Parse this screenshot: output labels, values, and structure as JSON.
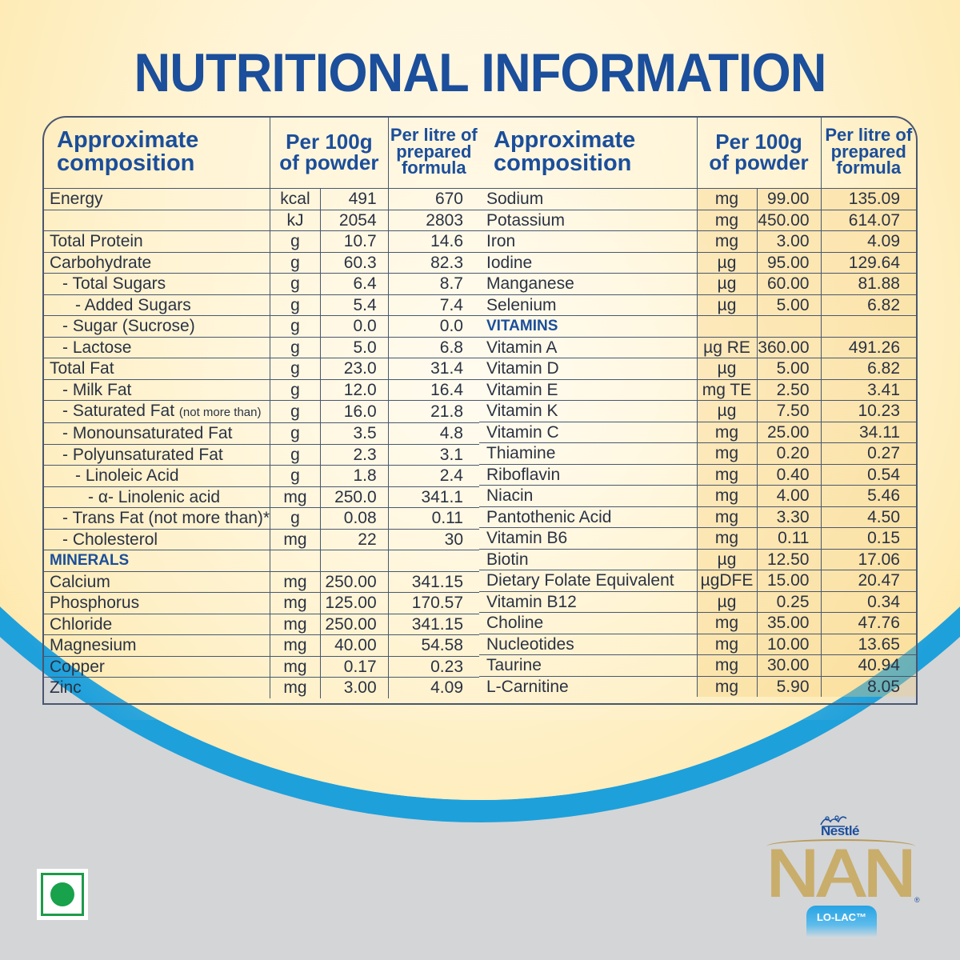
{
  "title": "NUTRITIONAL INFORMATION",
  "headers": {
    "composition_line1": "Approximate",
    "composition_line2": "composition",
    "per100_line1": "Per 100g",
    "per100_line2": "of powder",
    "perlitre_line1": "Per litre of",
    "perlitre_line2": "prepared",
    "perlitre_line3": "formula"
  },
  "left_rows": [
    {
      "name": "Energy",
      "unit": "kcal",
      "per100g": "491",
      "per_litre": "670"
    },
    {
      "name": "",
      "unit": "kJ",
      "per100g": "2054",
      "per_litre": "2803"
    },
    {
      "name": "Total Protein",
      "unit": "g",
      "per100g": "10.7",
      "per_litre": "14.6"
    },
    {
      "name": "Carbohydrate",
      "unit": "g",
      "per100g": "60.3",
      "per_litre": "82.3"
    },
    {
      "name": "- Total Sugars",
      "unit": "g",
      "per100g": "6.4",
      "per_litre": "8.7"
    },
    {
      "name": "- Added Sugars",
      "unit": "g",
      "per100g": "5.4",
      "per_litre": "7.4"
    },
    {
      "name": "- Sugar (Sucrose)",
      "unit": "g",
      "per100g": "0.0",
      "per_litre": "0.0"
    },
    {
      "name": "- Lactose",
      "unit": "g",
      "per100g": "5.0",
      "per_litre": "6.8"
    },
    {
      "name": "Total Fat",
      "unit": "g",
      "per100g": "23.0",
      "per_litre": "31.4"
    },
    {
      "name": "- Milk Fat",
      "unit": "g",
      "per100g": "12.0",
      "per_litre": "16.4"
    },
    {
      "name": "- Saturated Fat",
      "note": "(not more than)",
      "unit": "g",
      "per100g": "16.0",
      "per_litre": "21.8"
    },
    {
      "name": "- Monounsaturated Fat",
      "unit": "g",
      "per100g": "3.5",
      "per_litre": "4.8"
    },
    {
      "name": "- Polyunsaturated Fat",
      "unit": "g",
      "per100g": "2.3",
      "per_litre": "3.1"
    },
    {
      "name": "- Linoleic Acid",
      "unit": "g",
      "per100g": "1.8",
      "per_litre": "2.4"
    },
    {
      "name": "- α- Linolenic acid",
      "unit": "mg",
      "per100g": "250.0",
      "per_litre": "341.1"
    },
    {
      "name": "- Trans Fat (not more than)*",
      "unit": "g",
      "per100g": "0.08",
      "per_litre": "0.11"
    },
    {
      "name": "- Cholesterol",
      "unit": "mg",
      "per100g": "22",
      "per_litre": "30"
    },
    {
      "name": "MINERALS",
      "unit": "",
      "per100g": "",
      "per_litre": ""
    },
    {
      "name": "Calcium",
      "unit": "mg",
      "per100g": "250.00",
      "per_litre": "341.15"
    },
    {
      "name": "Phosphorus",
      "unit": "mg",
      "per100g": "125.00",
      "per_litre": "170.57"
    },
    {
      "name": "Chloride",
      "unit": "mg",
      "per100g": "250.00",
      "per_litre": "341.15"
    },
    {
      "name": "Magnesium",
      "unit": "mg",
      "per100g": "40.00",
      "per_litre": "54.58"
    },
    {
      "name": "Copper",
      "unit": "mg",
      "per100g": "0.17",
      "per_litre": "0.23"
    },
    {
      "name": "Zinc",
      "unit": "mg",
      "per100g": "3.00",
      "per_litre": "4.09"
    }
  ],
  "right_rows": [
    {
      "name": "Sodium",
      "unit": "mg",
      "per100g": "99.00",
      "per_litre": "135.09"
    },
    {
      "name": "Potassium",
      "unit": "mg",
      "per100g": "450.00",
      "per_litre": "614.07"
    },
    {
      "name": "Iron",
      "unit": "mg",
      "per100g": "3.00",
      "per_litre": "4.09"
    },
    {
      "name": "Iodine",
      "unit": "µg",
      "per100g": "95.00",
      "per_litre": "129.64"
    },
    {
      "name": "Manganese",
      "unit": "µg",
      "per100g": "60.00",
      "per_litre": "81.88"
    },
    {
      "name": "Selenium",
      "unit": "µg",
      "per100g": "5.00",
      "per_litre": "6.82"
    },
    {
      "name": "VITAMINS",
      "unit": "",
      "per100g": "",
      "per_litre": ""
    },
    {
      "name": "Vitamin A",
      "unit": "µg RE",
      "per100g": "360.00",
      "per_litre": "491.26"
    },
    {
      "name": "Vitamin D",
      "unit": "µg",
      "per100g": "5.00",
      "per_litre": "6.82"
    },
    {
      "name": "Vitamin E",
      "unit": "mg TE",
      "per100g": "2.50",
      "per_litre": "3.41"
    },
    {
      "name": "Vitamin K",
      "unit": "µg",
      "per100g": "7.50",
      "per_litre": "10.23"
    },
    {
      "name": "Vitamin C",
      "unit": "mg",
      "per100g": "25.00",
      "per_litre": "34.11"
    },
    {
      "name": "Thiamine",
      "unit": "mg",
      "per100g": "0.20",
      "per_litre": "0.27"
    },
    {
      "name": "Riboflavin",
      "unit": "mg",
      "per100g": "0.40",
      "per_litre": "0.54"
    },
    {
      "name": "Niacin",
      "unit": "mg",
      "per100g": "4.00",
      "per_litre": "5.46"
    },
    {
      "name": "Pantothenic Acid",
      "unit": "mg",
      "per100g": "3.30",
      "per_litre": "4.50"
    },
    {
      "name": "Vitamin B6",
      "unit": "mg",
      "per100g": "0.11",
      "per_litre": "0.15"
    },
    {
      "name": "Biotin",
      "unit": "µg",
      "per100g": "12.50",
      "per_litre": "17.06"
    },
    {
      "name": "Dietary Folate Equivalent",
      "unit": "µgDFE",
      "per100g": "15.00",
      "per_litre": "20.47"
    },
    {
      "name": "Vitamin B12",
      "unit": "µg",
      "per100g": "0.25",
      "per_litre": "0.34"
    },
    {
      "name": "Choline",
      "unit": "mg",
      "per100g": "35.00",
      "per_litre": "47.76"
    },
    {
      "name": "Nucleotides",
      "unit": "mg",
      "per100g": "10.00",
      "per_litre": "13.65"
    },
    {
      "name": "Taurine",
      "unit": "mg",
      "per100g": "30.00",
      "per_litre": "40.94"
    },
    {
      "name": "L-Carnitine",
      "unit": "mg",
      "per100g": "5.90",
      "per_litre": "8.05"
    }
  ],
  "section_rows": [
    "MINERALS",
    "VITAMINS"
  ],
  "indent_levels": {
    "- Total Sugars": 1,
    "- Added Sugars": 2,
    "- Sugar (Sucrose)": 1,
    "- Lactose": 1,
    "- Milk Fat": 1,
    "- Saturated Fat": 1,
    "- Monounsaturated Fat": 1,
    "- Polyunsaturated Fat": 1,
    "- Linoleic Acid": 2,
    "- α- Linolenic acid": 3,
    "- Trans Fat (not more than)*": 1,
    "- Cholesterol": 1
  },
  "brand": {
    "company": "Nestlé",
    "product": "NAN",
    "registered": "®",
    "variant": "LO-LAC™"
  },
  "veg_mark": "vegetarian-symbol",
  "colors": {
    "title_blue": "#1b4e9b",
    "text_dark": "#2a3243",
    "border": "#4a5670",
    "cream": "#fff3d2",
    "gold": "#f6cf7a",
    "band_blue": "#1ea0db",
    "grey_bg": "#d4d5d7",
    "veg_green": "#17a24b"
  }
}
